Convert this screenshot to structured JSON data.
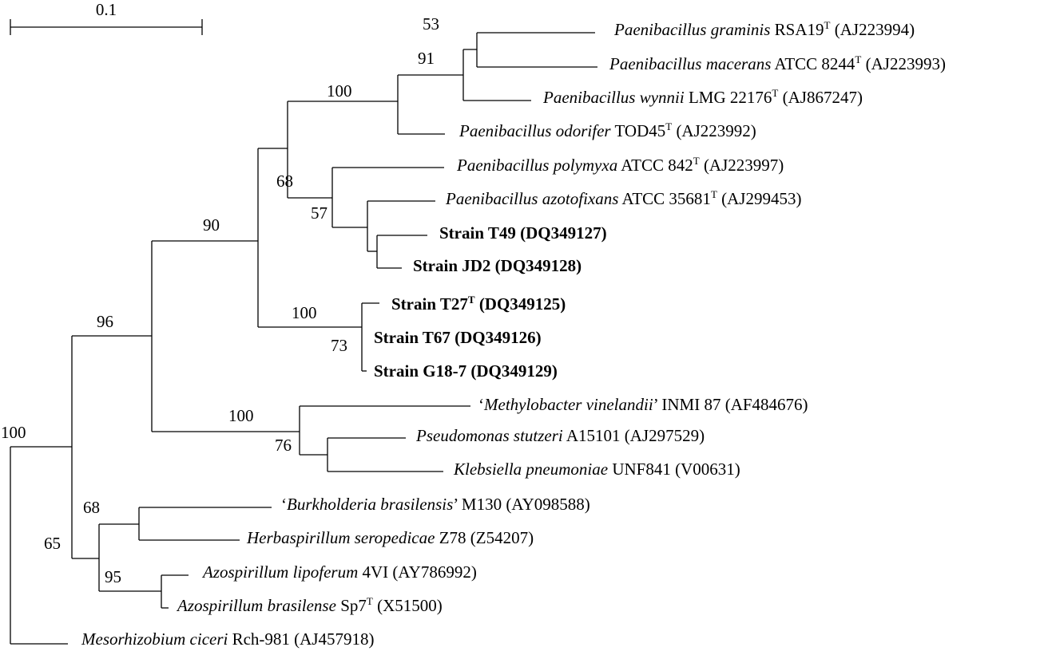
{
  "scale_bar": {
    "label": "0.1"
  },
  "taxa": [
    {
      "id": "graminis",
      "parts": [
        {
          "t": "Paenibacillus graminis",
          "s": "i"
        },
        {
          "t": " RSA19"
        },
        {
          "t": "T",
          "s": "sup"
        },
        {
          "t": " (AJ223994)"
        }
      ]
    },
    {
      "id": "macerans",
      "parts": [
        {
          "t": "Paenibacillus macerans",
          "s": "i"
        },
        {
          "t": " ATCC 8244"
        },
        {
          "t": "T",
          "s": "sup"
        },
        {
          "t": " (AJ223993)"
        }
      ]
    },
    {
      "id": "wynnii",
      "parts": [
        {
          "t": "Paenibacillus wynnii",
          "s": "i"
        },
        {
          "t": " LMG 22176"
        },
        {
          "t": "T",
          "s": "sup"
        },
        {
          "t": " (AJ867247)"
        }
      ]
    },
    {
      "id": "odorifer",
      "parts": [
        {
          "t": "Paenibacillus odorifer",
          "s": "i"
        },
        {
          "t": " TOD45"
        },
        {
          "t": "T",
          "s": "sup"
        },
        {
          "t": " (AJ223992)"
        }
      ]
    },
    {
      "id": "polymyxa",
      "parts": [
        {
          "t": "Paenibacillus polymyxa",
          "s": "i"
        },
        {
          "t": " ATCC 842"
        },
        {
          "t": "T",
          "s": "sup"
        },
        {
          "t": " (AJ223997)"
        }
      ]
    },
    {
      "id": "azotofixans",
      "parts": [
        {
          "t": "Paenibacillus azotofixans",
          "s": "i"
        },
        {
          "t": " ATCC 35681"
        },
        {
          "t": "T",
          "s": "sup"
        },
        {
          "t": " (AJ299453)"
        }
      ]
    },
    {
      "id": "t49",
      "parts": [
        {
          "t": "Strain T49 (DQ349127)",
          "s": "b"
        }
      ]
    },
    {
      "id": "jd2",
      "parts": [
        {
          "t": "Strain JD2 (DQ349128)",
          "s": "b"
        }
      ]
    },
    {
      "id": "t27",
      "parts": [
        {
          "t": "Strain T27",
          "s": "b"
        },
        {
          "t": "T",
          "s": "bsup"
        },
        {
          "t": " (DQ349125)",
          "s": "b"
        }
      ]
    },
    {
      "id": "t67",
      "parts": [
        {
          "t": "Strain T67 (DQ349126)",
          "s": "b"
        }
      ]
    },
    {
      "id": "g18",
      "parts": [
        {
          "t": "Strain G18-7 (DQ349129)",
          "s": "b"
        }
      ]
    },
    {
      "id": "methylobacter",
      "parts": [
        {
          "t": "‘"
        },
        {
          "t": "Methylobacter vinelandii",
          "s": "i"
        },
        {
          "t": "’ INMI 87 (AF484676)"
        }
      ]
    },
    {
      "id": "pseudomonas",
      "parts": [
        {
          "t": "Pseudomonas stutzeri",
          "s": "i"
        },
        {
          "t": " A15101 (AJ297529)"
        }
      ]
    },
    {
      "id": "klebsiella",
      "parts": [
        {
          "t": "Klebsiella pneumoniae",
          "s": "i"
        },
        {
          "t": " UNF841 (V00631)"
        }
      ]
    },
    {
      "id": "burkholderia",
      "parts": [
        {
          "t": "‘"
        },
        {
          "t": "Burkholderia brasilensis",
          "s": "i"
        },
        {
          "t": "’ M130 (AY098588)"
        }
      ]
    },
    {
      "id": "herbaspirillum",
      "parts": [
        {
          "t": "Herbaspirillum seropedicae",
          "s": "i"
        },
        {
          "t": " Z78 (Z54207)"
        }
      ]
    },
    {
      "id": "lipoferum",
      "parts": [
        {
          "t": "Azospirillum lipoferum",
          "s": "i"
        },
        {
          "t": " 4VI (AY786992)"
        }
      ]
    },
    {
      "id": "brasilense",
      "parts": [
        {
          "t": "Azospirillum brasilense",
          "s": "i"
        },
        {
          "t": " Sp7"
        },
        {
          "t": "T",
          "s": "sup"
        },
        {
          "t": " (X51500)"
        }
      ]
    },
    {
      "id": "mesorhizobium",
      "parts": [
        {
          "t": "Mesorhizobium ciceri",
          "s": "i"
        },
        {
          "t": " Rch-981 (AJ457918)"
        }
      ]
    }
  ],
  "bootstrap": [
    "53",
    "91",
    "100",
    "68",
    "57",
    "90",
    "100",
    "73",
    "96",
    "100",
    "76",
    "100",
    "68",
    "65",
    "95"
  ]
}
